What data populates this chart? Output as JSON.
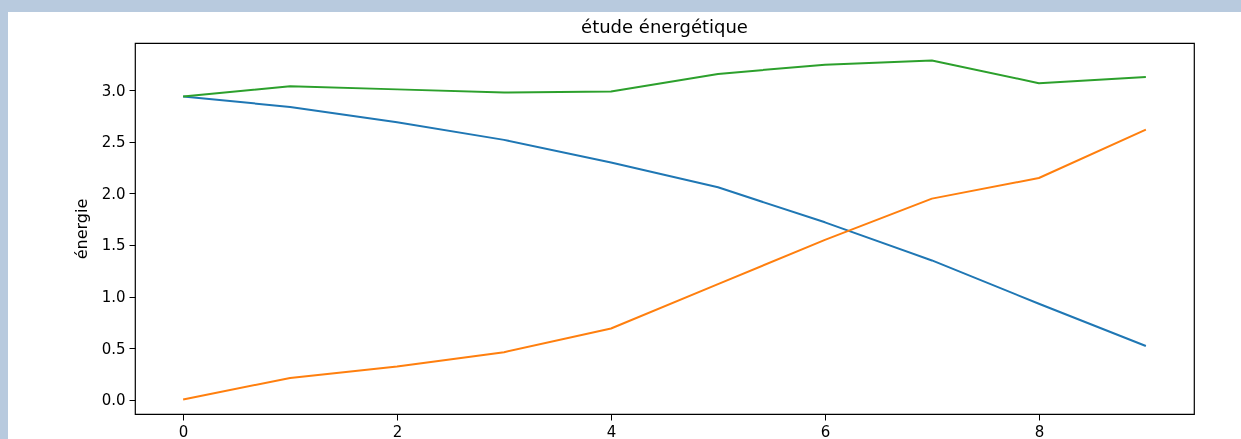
{
  "chart_data": {
    "type": "line",
    "title": "étude énergétique",
    "ylabel": "énergie",
    "x": [
      0,
      1,
      2,
      3,
      4,
      5,
      6,
      7,
      8,
      9
    ],
    "series": [
      {
        "color": "#1f77b4",
        "values": [
          2.94,
          2.84,
          2.69,
          2.52,
          2.3,
          2.06,
          1.72,
          1.35,
          0.93,
          0.52
        ]
      },
      {
        "color": "#ff7f0e",
        "values": [
          0,
          0.21,
          0.32,
          0.46,
          0.69,
          1.12,
          1.55,
          1.95,
          2.15,
          2.62
        ]
      },
      {
        "color": "#2ca02c",
        "values": [
          2.94,
          3.04,
          3.01,
          2.98,
          2.99,
          3.16,
          3.25,
          3.29,
          3.07,
          3.13
        ]
      }
    ],
    "xlim": [
      -0.45,
      9.45
    ],
    "xticks": [
      0,
      2,
      4,
      6,
      8
    ],
    "ylim": [
      -0.14,
      3.46
    ],
    "yticks": [
      {
        "value": 0,
        "label": "0.0"
      },
      {
        "value": 0.5,
        "label": "0.5"
      },
      {
        "value": 1,
        "label": "1.0"
      },
      {
        "value": 1.5,
        "label": "1.5"
      },
      {
        "value": 2,
        "label": "2.0"
      },
      {
        "value": 2.5,
        "label": "2.5"
      },
      {
        "value": 3,
        "label": "3.0"
      }
    ],
    "grid": false,
    "legend": false
  }
}
